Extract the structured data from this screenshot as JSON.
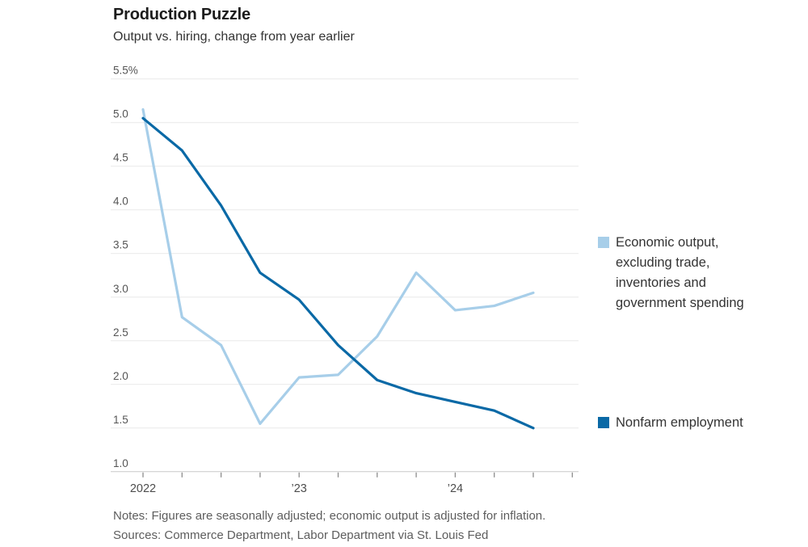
{
  "footer": {
    "notes": "Notes: Figures are seasonally adjusted; economic output is adjusted for inflation.",
    "sources": "Sources: Commerce Department, Labor Department via St. Louis Fed"
  },
  "chart_data": {
    "type": "line",
    "title": "Production Puzzle",
    "subtitle": "Output vs. hiring, change from year earlier",
    "xlabel": "",
    "ylabel": "Change from year earlier (%)",
    "x": [
      "2022 Q1",
      "2022 Q2",
      "2022 Q3",
      "2022 Q4",
      "2023 Q1",
      "2023 Q2",
      "2023 Q3",
      "2023 Q4",
      "2024 Q1",
      "2024 Q2",
      "2024 Q3"
    ],
    "series": [
      {
        "name": "Economic output, excluding trade, inventories and government spending",
        "color": "#a7cee9",
        "values": [
          5.15,
          2.77,
          2.45,
          1.55,
          2.08,
          2.11,
          2.55,
          3.28,
          2.85,
          2.9,
          3.05
        ]
      },
      {
        "name": "Nonfarm employment",
        "color": "#0a69a6",
        "values": [
          5.05,
          4.68,
          4.05,
          3.28,
          2.97,
          2.45,
          2.05,
          1.9,
          1.8,
          1.7,
          1.5
        ]
      }
    ],
    "ylim": [
      1.0,
      5.5
    ],
    "y_ticks": [
      {
        "value": 5.5,
        "label": "5.5%"
      },
      {
        "value": 5.0,
        "label": "5.0"
      },
      {
        "value": 4.5,
        "label": "4.5"
      },
      {
        "value": 4.0,
        "label": "4.0"
      },
      {
        "value": 3.5,
        "label": "3.5"
      },
      {
        "value": 3.0,
        "label": "3.0"
      },
      {
        "value": 2.5,
        "label": "2.5"
      },
      {
        "value": 2.0,
        "label": "2.0"
      },
      {
        "value": 1.5,
        "label": "1.5"
      },
      {
        "value": 1.0,
        "label": "1.0"
      }
    ],
    "x_axis": {
      "num_ticks": 12,
      "labels": [
        {
          "text": "2022",
          "tick": 0
        },
        {
          "text": "’23",
          "tick": 4
        },
        {
          "text": "’24",
          "tick": 8
        }
      ]
    },
    "grid": true,
    "legend_position": "right"
  }
}
